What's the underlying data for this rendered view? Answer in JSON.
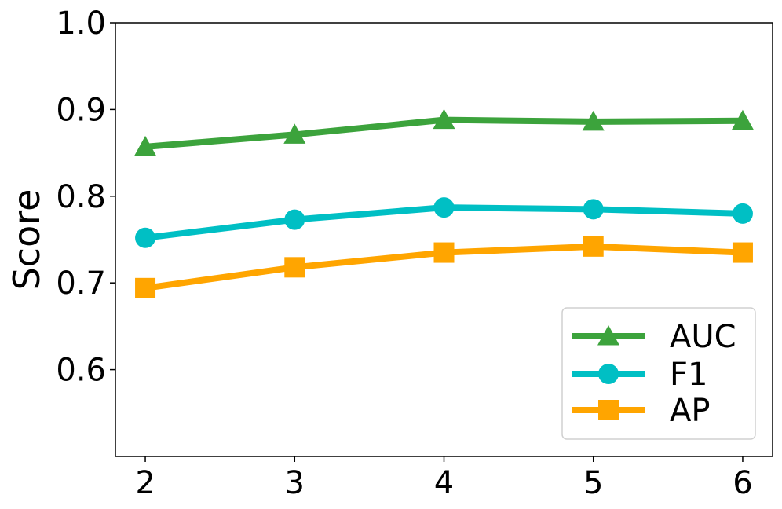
{
  "chart_data": {
    "type": "line",
    "title": "",
    "xlabel": "",
    "ylabel": "Score",
    "x": [
      2,
      3,
      4,
      5,
      6
    ],
    "xlim": [
      1.8,
      6.2
    ],
    "ylim": [
      0.5,
      1.0
    ],
    "x_ticks": [
      "2",
      "3",
      "4",
      "5",
      "6"
    ],
    "y_ticks": [
      "0.6",
      "0.7",
      "0.8",
      "0.9",
      "1.0"
    ],
    "grid": false,
    "legend_position": "lower-right",
    "series": [
      {
        "name": "AUC",
        "marker": "triangle",
        "color": "#3ca33c",
        "values": [
          0.857,
          0.871,
          0.888,
          0.886,
          0.887
        ]
      },
      {
        "name": "F1",
        "marker": "circle",
        "color": "#00bfc4",
        "values": [
          0.752,
          0.773,
          0.787,
          0.785,
          0.78
        ]
      },
      {
        "name": "AP",
        "marker": "square",
        "color": "#ffa500",
        "values": [
          0.694,
          0.718,
          0.735,
          0.742,
          0.735
        ]
      }
    ]
  }
}
